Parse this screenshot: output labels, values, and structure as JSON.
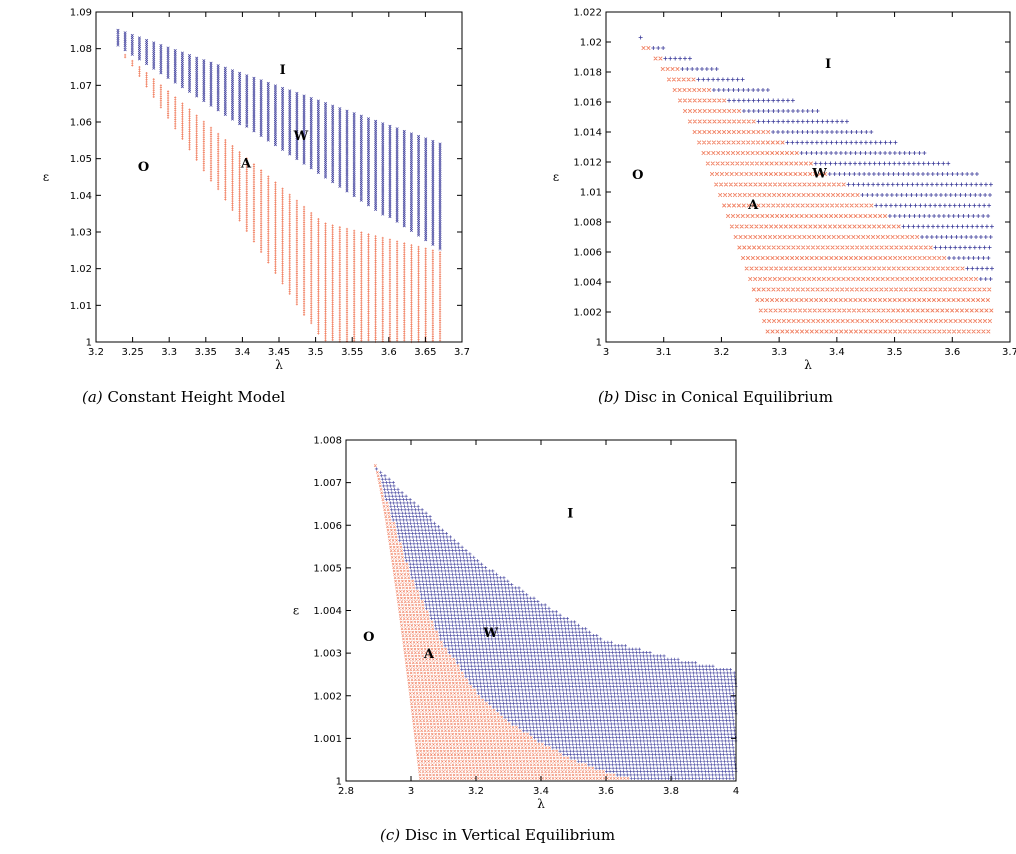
{
  "chart_data": [
    {
      "type": "scatter",
      "caption_tag": "(a)",
      "caption_text": "Constant Height Model",
      "xlabel": "λ",
      "ylabel": "ε",
      "xlim": [
        3.2,
        3.7
      ],
      "ylim": [
        1.0,
        1.09
      ],
      "xticks": [
        "3.2",
        "3.25",
        "3.3",
        "3.35",
        "3.4",
        "3.45",
        "3.5",
        "3.55",
        "3.6",
        "3.65",
        "3.7"
      ],
      "yticks": [
        "1",
        "1.01",
        "1.02",
        "1.03",
        "1.04",
        "1.05",
        "1.06",
        "1.07",
        "1.08",
        "1.09"
      ],
      "regions": [
        {
          "label": "I",
          "x": 3.455,
          "y": 1.0745
        },
        {
          "label": "W",
          "x": 3.48,
          "y": 1.0565
        },
        {
          "label": "O",
          "x": 3.265,
          "y": 1.048
        },
        {
          "label": "A",
          "x": 3.405,
          "y": 1.049
        }
      ],
      "series": [
        {
          "marker": "x",
          "color": "#3b3b9a",
          "x": [
            3.23,
            3.67
          ],
          "ytop": [
            1.085,
            1.054
          ],
          "ybottom": [
            1.0805,
            1.025
          ]
        },
        {
          "marker": "+",
          "color": "#f07a5a",
          "x": [
            3.23,
            3.51,
            3.67
          ],
          "ytop": [
            1.0805,
            1.033,
            1.025
          ],
          "ybottom": [
            1.0805,
            1.0,
            1.0
          ]
        }
      ]
    },
    {
      "type": "scatter",
      "caption_tag": "(b)",
      "caption_text": "Disc in Conical Equilibrium",
      "xlabel": "λ",
      "ylabel": "ε",
      "xlim": [
        3.0,
        3.7
      ],
      "ylim": [
        1.0,
        1.022
      ],
      "xticks": [
        "3",
        "3.1",
        "3.2",
        "3.3",
        "3.4",
        "3.5",
        "3.6",
        "3.7"
      ],
      "yticks": [
        "1",
        "1.002",
        "1.004",
        "1.006",
        "1.008",
        "1.01",
        "1.012",
        "1.014",
        "1.016",
        "1.018",
        "1.02",
        "1.022"
      ],
      "regions": [
        {
          "label": "I",
          "x": 3.385,
          "y": 1.0186
        },
        {
          "label": "W",
          "x": 3.37,
          "y": 1.0113
        },
        {
          "label": "O",
          "x": 3.055,
          "y": 1.0112
        },
        {
          "label": "A",
          "x": 3.255,
          "y": 1.0092
        }
      ],
      "series": [
        {
          "marker": "+",
          "color": "#3b3b9a",
          "x": [
            3.06,
            3.67
          ],
          "ytop": [
            1.0203,
            1.0108
          ],
          "ybottom": [
            1.0195,
            1.0035
          ]
        },
        {
          "marker": "x",
          "color": "#f07a5a",
          "x": [
            3.07,
            3.28,
            3.67
          ],
          "ybottom": [
            1.0195,
            1.0007,
            1.0007
          ]
        }
      ]
    },
    {
      "type": "scatter",
      "caption_tag": "(c)",
      "caption_text": "Disc in Vertical Equilibrium",
      "xlabel": "λ",
      "ylabel": "ε",
      "xlim": [
        2.8,
        4.0
      ],
      "ylim": [
        1.0,
        1.008
      ],
      "xticks": [
        "2.8",
        "3",
        "3.2",
        "3.4",
        "3.6",
        "3.8",
        "4"
      ],
      "yticks": [
        "1",
        "1.001",
        "1.002",
        "1.003",
        "1.004",
        "1.005",
        "1.006",
        "1.007",
        "1.008"
      ],
      "regions": [
        {
          "label": "I",
          "x": 3.49,
          "y": 1.0063
        },
        {
          "label": "W",
          "x": 3.245,
          "y": 1.0035
        },
        {
          "label": "O",
          "x": 2.87,
          "y": 1.0034
        },
        {
          "label": "A",
          "x": 3.055,
          "y": 1.003
        }
      ],
      "series": [
        {
          "marker": "+",
          "color": "#3b3b9a",
          "x": [
            2.89,
            3.2,
            3.4,
            3.6,
            3.8,
            4.0
          ],
          "ytop": [
            1.0074,
            1.0052,
            1.0042,
            1.0033,
            1.0029,
            1.0026
          ]
        },
        {
          "marker": "x",
          "color": "#f07a5a",
          "x": [
            2.89,
            3.0,
            3.1,
            3.2,
            3.3,
            3.4,
            3.5,
            3.6,
            3.7
          ],
          "ybottom": [
            1.0074,
            1.0048,
            1.0032,
            1.0021,
            1.0014,
            1.0009,
            1.0005,
            1.0002,
            1.0
          ]
        }
      ]
    }
  ]
}
